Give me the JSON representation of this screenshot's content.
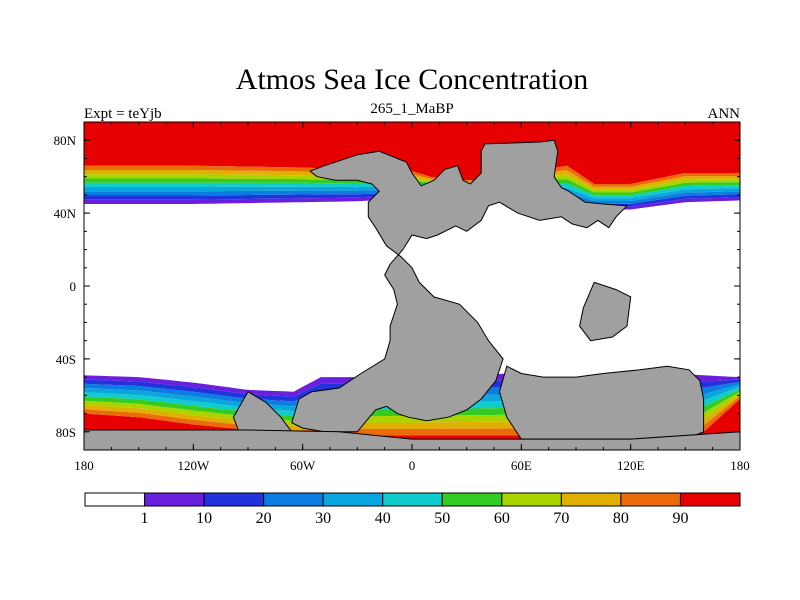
{
  "title": "Atmos Sea Ice Concentration",
  "subtitle": "265_1_MaBP",
  "left_label": "Expt = teYjb",
  "right_label": "ANN",
  "colors": {
    "land": "#a0a0a0",
    "band_0": "#ffffff",
    "band_1": "#6a1fdc",
    "band_2": "#2233dd",
    "band_3": "#0a7de0",
    "band_4": "#0aa5de",
    "band_5": "#10cccc",
    "band_6": "#33cc22",
    "band_7": "#aad400",
    "band_8": "#e0b000",
    "band_9": "#ea6a0c",
    "band_10": "#e60000"
  },
  "chart_data": {
    "type": "heatmap",
    "title": "Atmos Sea Ice Concentration",
    "subtitle": "265_1_MaBP",
    "experiment": "Expt = teYjb",
    "season": "ANN",
    "projection": "cylindrical equidistant",
    "x_range_deg": [
      -180,
      180
    ],
    "y_range_deg": [
      -90,
      90
    ],
    "x_ticks": [
      {
        "value": -180,
        "label": "180"
      },
      {
        "value": -120,
        "label": "120W"
      },
      {
        "value": -60,
        "label": "60W"
      },
      {
        "value": 0,
        "label": "0"
      },
      {
        "value": 60,
        "label": "60E"
      },
      {
        "value": 120,
        "label": "120E"
      },
      {
        "value": 180,
        "label": "180"
      }
    ],
    "y_ticks": [
      {
        "value": 80,
        "label": "80N"
      },
      {
        "value": 40,
        "label": "40N"
      },
      {
        "value": 0,
        "label": "0"
      },
      {
        "value": -40,
        "label": "40S"
      },
      {
        "value": -80,
        "label": "80S"
      }
    ],
    "contour_levels": [
      1,
      10,
      20,
      30,
      40,
      50,
      60,
      70,
      80,
      90
    ],
    "colorbar_labels": [
      "1",
      "10",
      "20",
      "30",
      "40",
      "50",
      "60",
      "70",
      "80",
      "90"
    ],
    "ice_edge_north_deg": [
      [
        -180,
        45
      ],
      [
        -150,
        45
      ],
      [
        -120,
        45
      ],
      [
        -90,
        45.5
      ],
      [
        -60,
        46
      ],
      [
        -30,
        46.5
      ],
      [
        0,
        48
      ],
      [
        20,
        52
      ],
      [
        40,
        52
      ],
      [
        60,
        50
      ],
      [
        85,
        44
      ],
      [
        100,
        42
      ],
      [
        120,
        42
      ],
      [
        150,
        46
      ],
      [
        180,
        47
      ]
    ],
    "ice_full_north_deg": [
      [
        -180,
        66
      ],
      [
        -150,
        66
      ],
      [
        -120,
        66
      ],
      [
        -90,
        65.5
      ],
      [
        -60,
        65
      ],
      [
        -30,
        64
      ],
      [
        0,
        63
      ],
      [
        10,
        60
      ],
      [
        25,
        58
      ],
      [
        40,
        58
      ],
      [
        60,
        62
      ],
      [
        85,
        66
      ],
      [
        100,
        56
      ],
      [
        120,
        56
      ],
      [
        150,
        62
      ],
      [
        180,
        62
      ]
    ],
    "ice_edge_south_deg": [
      [
        -180,
        -49
      ],
      [
        -150,
        -50
      ],
      [
        -120,
        -53
      ],
      [
        -90,
        -57
      ],
      [
        -65,
        -58
      ],
      [
        -50,
        -50
      ],
      [
        0,
        -50
      ],
      [
        55,
        -48
      ],
      [
        60,
        -51
      ],
      [
        90,
        -52
      ],
      [
        110,
        -50
      ],
      [
        140,
        -48
      ],
      [
        160,
        -49
      ],
      [
        180,
        -50
      ]
    ],
    "ice_full_south_deg": [
      [
        -180,
        -70
      ],
      [
        -150,
        -72
      ],
      [
        -120,
        -76
      ],
      [
        -90,
        -79
      ],
      [
        -65,
        -82
      ],
      [
        0,
        -82
      ],
      [
        60,
        -82
      ],
      [
        120,
        -82
      ],
      [
        160,
        -80
      ],
      [
        180,
        -62
      ]
    ],
    "land_polygons_deg": [
      [
        [
          -56,
          63
        ],
        [
          -48,
          66
        ],
        [
          -30,
          72
        ],
        [
          -18,
          74
        ],
        [
          -3,
          68
        ],
        [
          0,
          62
        ],
        [
          5,
          55
        ],
        [
          12,
          58
        ],
        [
          18,
          64
        ],
        [
          25,
          66
        ],
        [
          28,
          58
        ],
        [
          32,
          56
        ],
        [
          38,
          62
        ],
        [
          38,
          74
        ],
        [
          40,
          78
        ],
        [
          70,
          79
        ],
        [
          78,
          80
        ],
        [
          80,
          74
        ],
        [
          78,
          60
        ],
        [
          82,
          54
        ],
        [
          86,
          52
        ],
        [
          95,
          46
        ],
        [
          105,
          45
        ],
        [
          118,
          44
        ],
        [
          112,
          38
        ],
        [
          108,
          32
        ],
        [
          102,
          36
        ],
        [
          96,
          32
        ],
        [
          88,
          34
        ],
        [
          82,
          38
        ],
        [
          70,
          36
        ],
        [
          58,
          40
        ],
        [
          48,
          46
        ],
        [
          42,
          44
        ],
        [
          38,
          36
        ],
        [
          30,
          30
        ],
        [
          24,
          33
        ],
        [
          14,
          28
        ],
        [
          8,
          26
        ],
        [
          0,
          28
        ],
        [
          -5,
          20
        ],
        [
          -12,
          12
        ],
        [
          -15,
          6
        ],
        [
          -10,
          -2
        ],
        [
          -8,
          -10
        ],
        [
          -12,
          -22
        ],
        [
          -12,
          -30
        ],
        [
          -15,
          -40
        ],
        [
          -28,
          -48
        ],
        [
          -40,
          -56
        ],
        [
          -55,
          -58
        ],
        [
          -62,
          -62
        ],
        [
          -66,
          -75
        ],
        [
          -60,
          -78
        ],
        [
          -48,
          -80
        ],
        [
          -30,
          -80
        ],
        [
          -25,
          -74
        ],
        [
          -20,
          -68
        ],
        [
          -14,
          -66
        ],
        [
          -8,
          -70
        ],
        [
          -2,
          -72
        ],
        [
          8,
          -74
        ],
        [
          20,
          -72
        ],
        [
          30,
          -68
        ],
        [
          38,
          -62
        ],
        [
          46,
          -52
        ],
        [
          50,
          -40
        ],
        [
          42,
          -30
        ],
        [
          36,
          -20
        ],
        [
          26,
          -10
        ],
        [
          12,
          -6
        ],
        [
          4,
          2
        ],
        [
          0,
          10
        ],
        [
          -6,
          16
        ],
        [
          -14,
          22
        ],
        [
          -20,
          32
        ],
        [
          -24,
          38
        ],
        [
          -24,
          46
        ],
        [
          -18,
          52
        ],
        [
          -22,
          56
        ],
        [
          -30,
          58
        ],
        [
          -42,
          58
        ],
        [
          -52,
          60
        ]
      ],
      [
        [
          100,
          2
        ],
        [
          112,
          -2
        ],
        [
          120,
          -6
        ],
        [
          118,
          -22
        ],
        [
          110,
          -28
        ],
        [
          98,
          -30
        ],
        [
          92,
          -22
        ],
        [
          94,
          -12
        ]
      ],
      [
        [
          -90,
          -58
        ],
        [
          -80,
          -64
        ],
        [
          -72,
          -72
        ],
        [
          -66,
          -80
        ],
        [
          -80,
          -82
        ],
        [
          -95,
          -80
        ],
        [
          -98,
          -72
        ]
      ],
      [
        [
          52,
          -44
        ],
        [
          60,
          -48
        ],
        [
          72,
          -50
        ],
        [
          90,
          -50
        ],
        [
          105,
          -48
        ],
        [
          125,
          -46
        ],
        [
          140,
          -44
        ],
        [
          152,
          -46
        ],
        [
          158,
          -52
        ],
        [
          160,
          -62
        ],
        [
          160,
          -80
        ],
        [
          150,
          -84
        ],
        [
          120,
          -84
        ],
        [
          90,
          -84
        ],
        [
          60,
          -84
        ],
        [
          52,
          -72
        ],
        [
          48,
          -58
        ]
      ],
      [
        [
          -180,
          -79
        ],
        [
          -90,
          -79
        ],
        [
          -40,
          -80
        ],
        [
          0,
          -84
        ],
        [
          60,
          -84
        ],
        [
          120,
          -84
        ],
        [
          180,
          -80
        ],
        [
          180,
          -90
        ],
        [
          -180,
          -90
        ]
      ]
    ]
  }
}
